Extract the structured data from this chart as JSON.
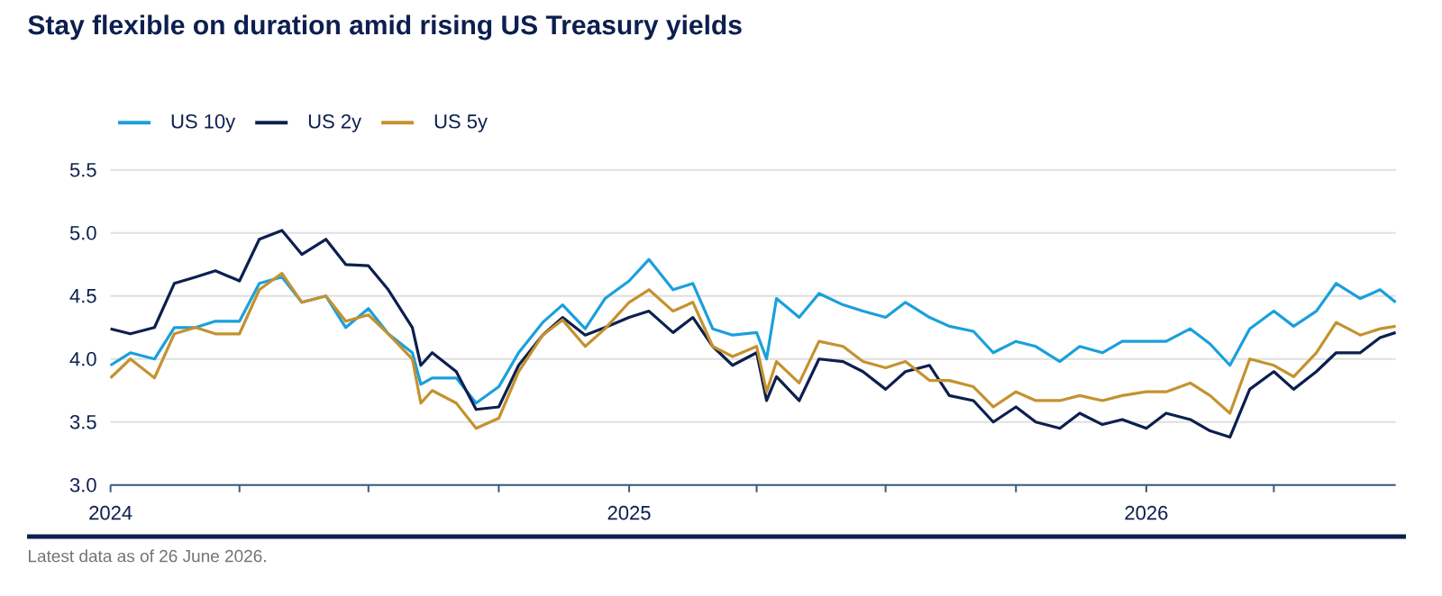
{
  "chart_data": {
    "type": "line",
    "title": "Stay flexible on duration amid rising US Treasury yields",
    "annotations": [
      "Latest data as of 26 June 2026."
    ],
    "x": [
      "2024-01-01",
      "2024-01-15",
      "2024-02-01",
      "2024-02-15",
      "2024-03-01",
      "2024-03-15",
      "2024-04-01",
      "2024-04-15",
      "2024-05-01",
      "2024-05-15",
      "2024-06-01",
      "2024-06-15",
      "2024-07-01",
      "2024-07-15",
      "2024-08-01",
      "2024-08-07",
      "2024-08-15",
      "2024-09-01",
      "2024-09-15",
      "2024-10-01",
      "2024-10-15",
      "2024-11-01",
      "2024-11-15",
      "2024-12-01",
      "2024-12-15",
      "2025-01-01",
      "2025-01-15",
      "2025-02-01",
      "2025-02-15",
      "2025-03-01",
      "2025-03-15",
      "2025-04-01",
      "2025-04-08",
      "2025-04-15",
      "2025-05-01",
      "2025-05-15",
      "2025-06-01",
      "2025-06-15",
      "2025-07-01",
      "2025-07-15",
      "2025-08-01",
      "2025-08-15",
      "2025-09-01",
      "2025-09-15",
      "2025-10-01",
      "2025-10-15",
      "2025-11-01",
      "2025-11-15",
      "2025-12-01",
      "2025-12-15",
      "2026-01-01",
      "2026-01-15",
      "2026-02-01",
      "2026-02-15",
      "2026-03-01",
      "2026-03-15",
      "2026-04-01",
      "2026-04-15",
      "2026-05-01",
      "2026-05-15",
      "2026-06-01",
      "2026-06-15",
      "2026-06-26"
    ],
    "series": [
      {
        "name": "US 10y",
        "color": "#1aa0dc",
        "values": [
          3.95,
          4.05,
          4.0,
          4.25,
          4.25,
          4.3,
          4.3,
          4.6,
          4.65,
          4.45,
          4.5,
          4.25,
          4.4,
          4.2,
          4.05,
          3.8,
          3.85,
          3.85,
          3.65,
          3.78,
          4.05,
          4.29,
          4.43,
          4.24,
          4.48,
          4.62,
          4.79,
          4.55,
          4.6,
          4.24,
          4.19,
          4.21,
          4.0,
          4.48,
          4.33,
          4.52,
          4.43,
          4.38,
          4.33,
          4.45,
          4.33,
          4.26,
          4.22,
          4.05,
          4.14,
          4.1,
          3.98,
          4.1,
          4.05,
          4.14,
          4.14,
          4.14,
          4.24,
          4.12,
          3.95,
          4.24,
          4.38,
          4.26,
          4.38,
          4.6,
          4.48,
          4.55,
          4.45
        ]
      },
      {
        "name": "US 2y",
        "color": "#0d1f4f",
        "values": [
          4.24,
          4.2,
          4.25,
          4.6,
          4.65,
          4.7,
          4.62,
          4.95,
          5.02,
          4.83,
          4.95,
          4.75,
          4.74,
          4.55,
          4.25,
          3.95,
          4.05,
          3.9,
          3.6,
          3.62,
          3.95,
          4.19,
          4.33,
          4.19,
          4.25,
          4.33,
          4.38,
          4.21,
          4.33,
          4.1,
          3.95,
          4.05,
          3.67,
          3.86,
          3.67,
          4.0,
          3.98,
          3.9,
          3.76,
          3.9,
          3.95,
          3.71,
          3.67,
          3.5,
          3.62,
          3.5,
          3.45,
          3.57,
          3.48,
          3.52,
          3.45,
          3.57,
          3.52,
          3.43,
          3.38,
          3.76,
          3.9,
          3.76,
          3.9,
          4.05,
          4.05,
          4.17,
          4.21
        ]
      },
      {
        "name": "US 5y",
        "color": "#c4922f",
        "values": [
          3.85,
          4.0,
          3.85,
          4.2,
          4.25,
          4.2,
          4.2,
          4.55,
          4.68,
          4.45,
          4.5,
          4.3,
          4.35,
          4.2,
          4.0,
          3.65,
          3.75,
          3.65,
          3.45,
          3.53,
          3.9,
          4.19,
          4.31,
          4.1,
          4.24,
          4.45,
          4.55,
          4.38,
          4.45,
          4.1,
          4.02,
          4.1,
          3.74,
          3.98,
          3.81,
          4.14,
          4.1,
          3.98,
          3.93,
          3.98,
          3.83,
          3.83,
          3.78,
          3.62,
          3.74,
          3.67,
          3.67,
          3.71,
          3.67,
          3.71,
          3.74,
          3.74,
          3.81,
          3.71,
          3.57,
          4.0,
          3.95,
          3.86,
          4.05,
          4.29,
          4.19,
          4.24,
          4.26
        ]
      }
    ],
    "xlim": [
      "2024-01-01",
      "2026-06-26"
    ],
    "xticks": [
      "2024",
      {
        "value": "2024-04",
        "label": null
      },
      {
        "value": "2024-07",
        "label": null
      },
      {
        "value": "2024-10",
        "label": null
      },
      "2025",
      {
        "value": "2025-04",
        "label": null
      },
      {
        "value": "2025-07",
        "label": null
      },
      {
        "value": "2025-10",
        "label": null
      },
      "2026",
      {
        "value": "2026-04",
        "label": null
      }
    ],
    "ylim": [
      3.0,
      5.5
    ],
    "yticks": [
      {
        "value": 3,
        "label": "3.0"
      },
      3.5,
      {
        "value": 4,
        "label": "4.0"
      },
      4.5,
      {
        "value": 5,
        "label": "5.0"
      },
      5.5
    ],
    "grid": "y",
    "legend": "top left",
    "line_style": "solid",
    "marker": "none"
  }
}
